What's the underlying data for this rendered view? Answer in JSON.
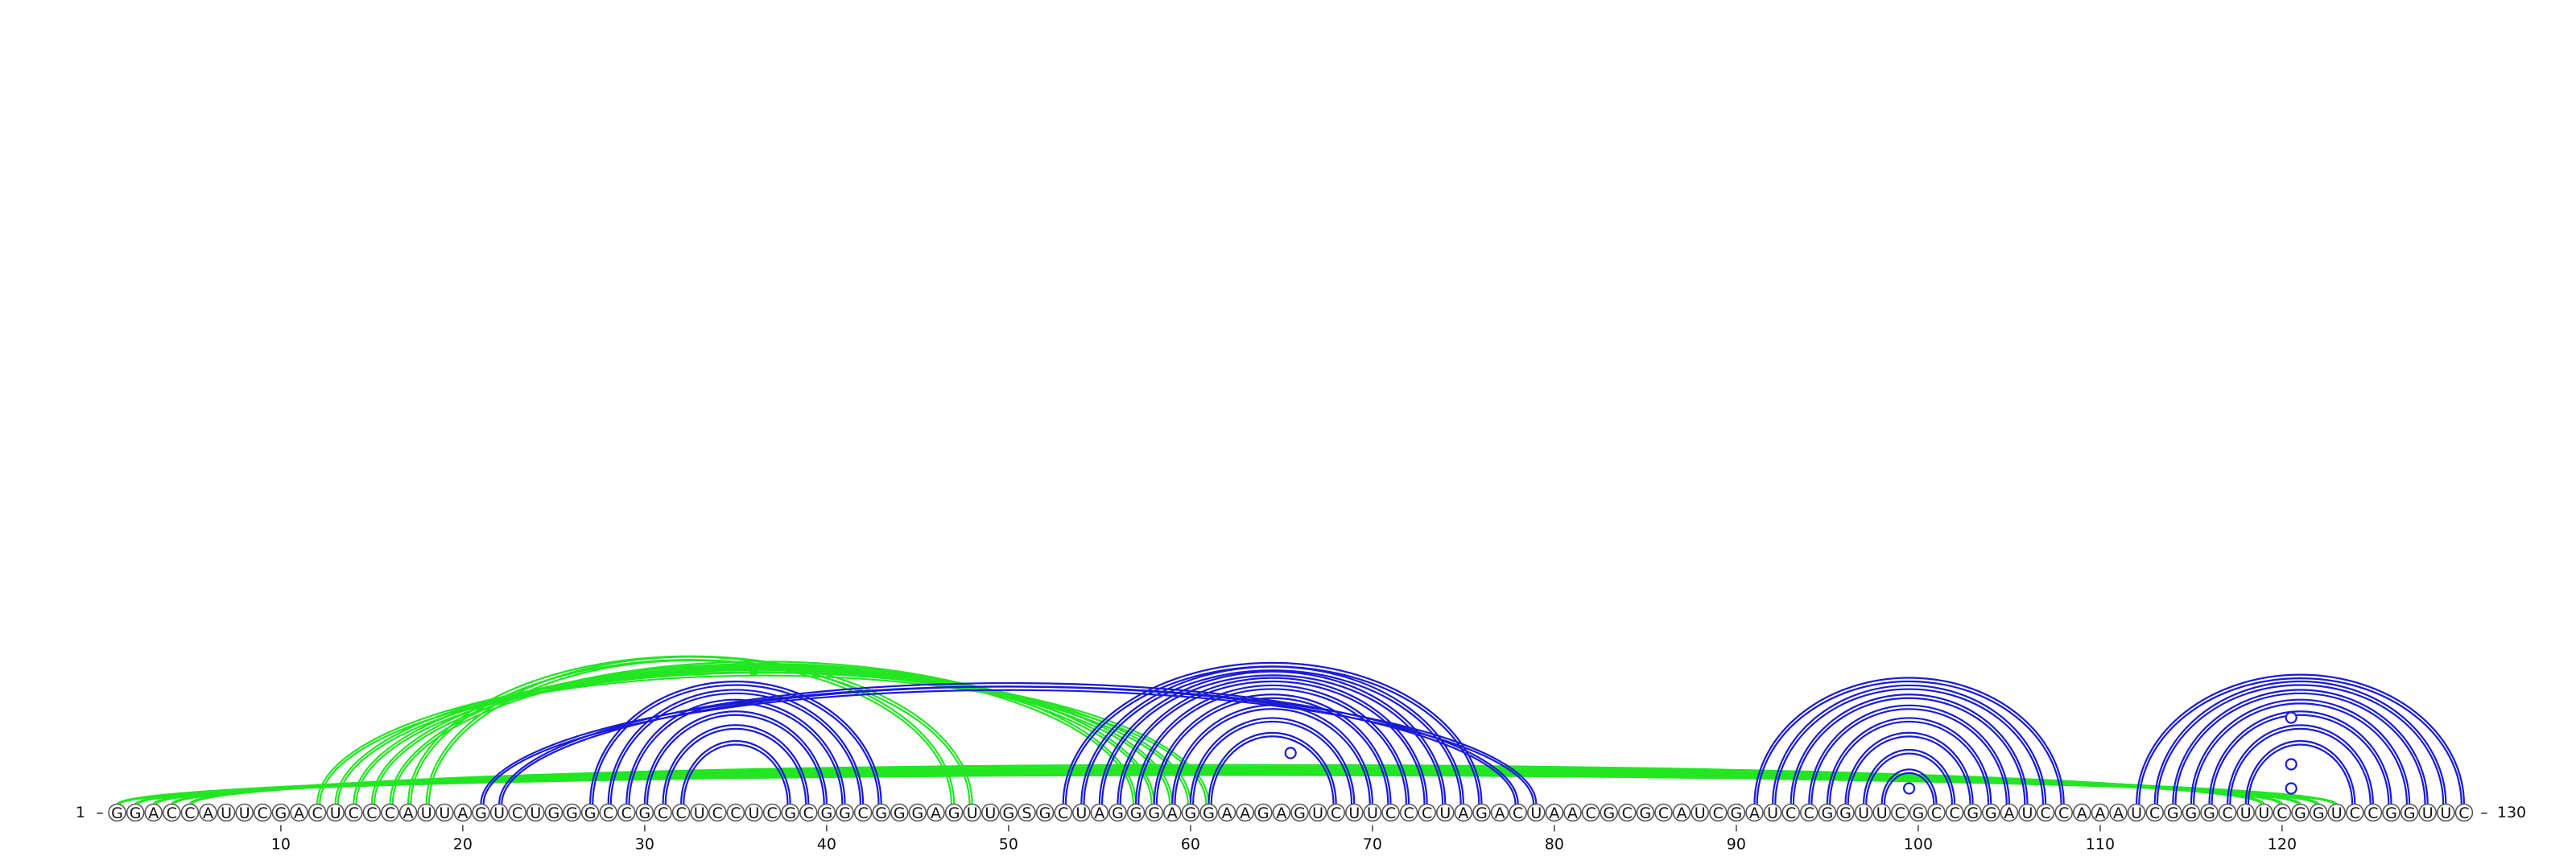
{
  "sequence": "GGACCAUUCGACUCCCAUUAGUCUGGGCCGCCUCCUCGCGGCGGGAGUUGSGCUAGGGAGGAAGAGUCUUCCCUAGACUAACGCGCAUCGAUCCGGUUCGCCGGAUCCAAAUCGGGCUUCGGUCCGGUUC",
  "start_label": "1",
  "end_label": "130",
  "tick_labels": [
    "10",
    "20",
    "30",
    "40",
    "50",
    "60",
    "70",
    "80",
    "90",
    "100",
    "110",
    "120"
  ],
  "colors": {
    "green": "#22e622",
    "blue": "#1a1ad6"
  },
  "helices": [
    {
      "color": "green",
      "pairs": [
        [
          1,
          123
        ],
        [
          2,
          122
        ],
        [
          3,
          121
        ],
        [
          4,
          120
        ],
        [
          5,
          119
        ]
      ]
    },
    {
      "color": "green",
      "pairs": [
        [
          12,
          61
        ],
        [
          13,
          60
        ],
        [
          14,
          59
        ],
        [
          15,
          58
        ],
        [
          16,
          57
        ],
        [
          17,
          48
        ],
        [
          18,
          47
        ]
      ]
    },
    {
      "color": "blue",
      "pairs": [
        [
          21,
          79
        ],
        [
          22,
          78
        ]
      ]
    },
    {
      "color": "blue",
      "pairs": [
        [
          27,
          43
        ],
        [
          28,
          42
        ],
        [
          29,
          41
        ],
        [
          30,
          40
        ],
        [
          31,
          39
        ],
        [
          32,
          38
        ]
      ]
    },
    {
      "color": "blue",
      "pairs": [
        [
          53,
          76
        ],
        [
          54,
          75
        ],
        [
          55,
          74
        ],
        [
          56,
          73
        ],
        [
          57,
          72
        ],
        [
          58,
          71
        ],
        [
          59,
          70
        ],
        [
          60,
          69
        ],
        [
          61,
          68
        ]
      ]
    },
    {
      "color": "blue",
      "pairs": [
        [
          91,
          108
        ],
        [
          92,
          107
        ],
        [
          93,
          106
        ],
        [
          94,
          105
        ],
        [
          95,
          104
        ],
        [
          96,
          103
        ],
        [
          97,
          102
        ],
        [
          98,
          101
        ]
      ]
    },
    {
      "color": "blue",
      "pairs": [
        [
          112,
          130
        ],
        [
          113,
          129
        ],
        [
          114,
          128
        ],
        [
          115,
          127
        ],
        [
          116,
          126
        ],
        [
          117,
          125
        ],
        [
          118,
          124
        ]
      ]
    }
  ],
  "pseudoknot_marker": {
    "position": 36,
    "color": "green"
  },
  "loop_markers": [
    65,
    99,
    120
  ]
}
